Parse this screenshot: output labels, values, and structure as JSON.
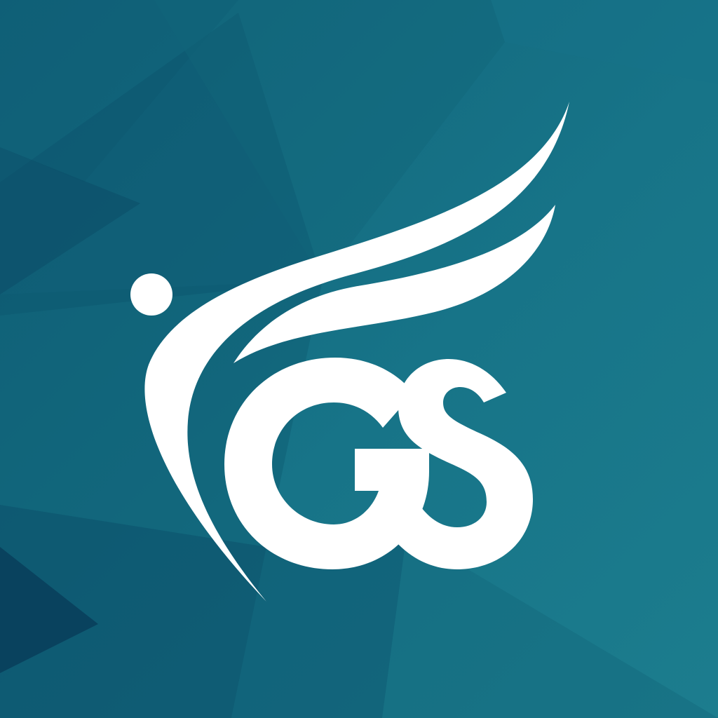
{
  "logo": {
    "lettering": "GS",
    "icon": "winged-figure-icon"
  },
  "colors": {
    "background_light": "#1b7a8c",
    "background_mid": "#136a7d",
    "background_dark": "#0b4f6a",
    "background_darkest": "#083e5a",
    "foreground": "#ffffff"
  }
}
